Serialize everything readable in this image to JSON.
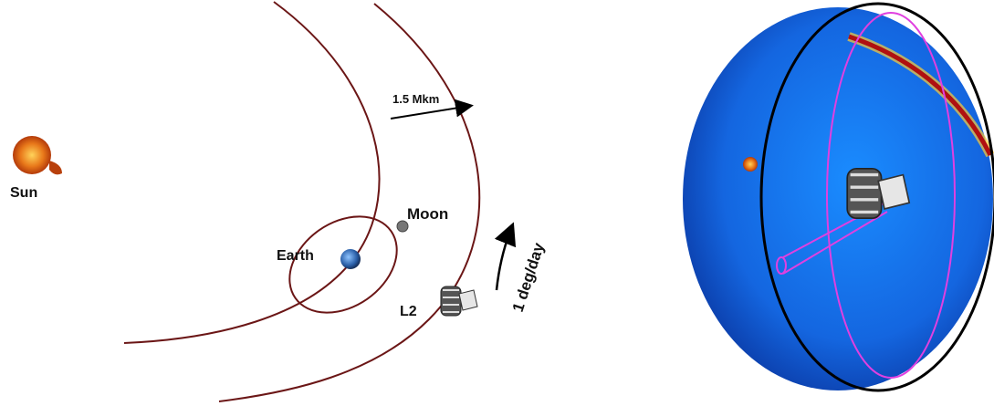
{
  "labels": {
    "sun": "Sun",
    "earth": "Earth",
    "moon": "Moon",
    "l2": "L2",
    "distance": "1.5 Mkm",
    "rate": "1 deg/day"
  }
}
